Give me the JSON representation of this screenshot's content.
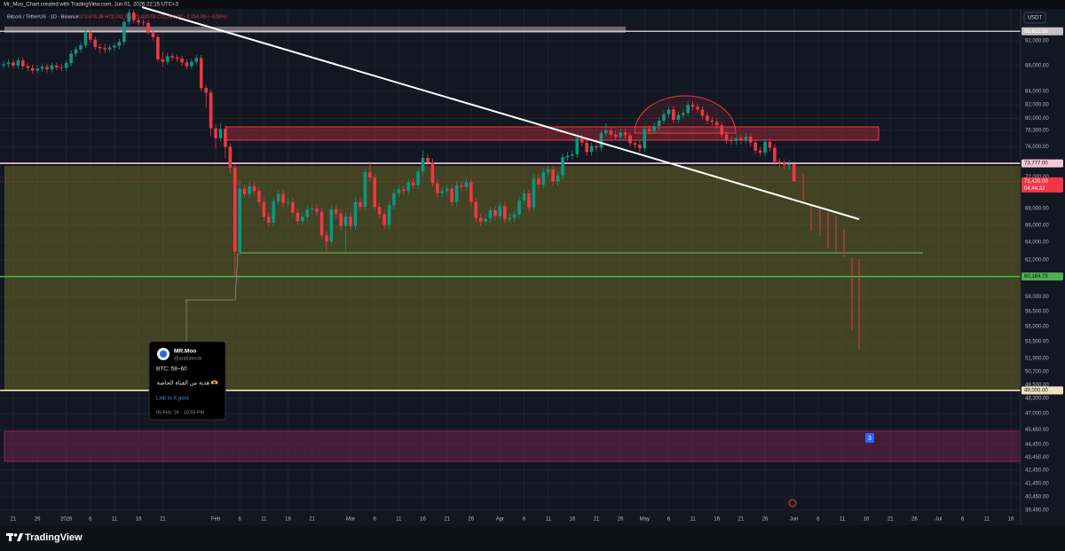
{
  "header": {
    "watermark": "Mr_Moo_Chart created with TradingView.com, Jun 01, 2026 22:15 UTC+3",
    "symbol": "Bitcoin / TetherUS · 1D · Binance",
    "ohlc": "O73,674.39 H73,742.00 L71,420.00 C71,420.00 −2,254.39 (−3.06%)",
    "currency": "USDT"
  },
  "chart_data": {
    "type": "candlestick",
    "log_scale": true,
    "grid": true,
    "up_color": "#089981",
    "down_color": "#f23645",
    "categories": [
      null,
      null,
      "21",
      null,
      null,
      null,
      null,
      "26",
      null,
      null,
      null,
      null,
      null,
      "2026",
      null,
      null,
      null,
      null,
      "6",
      null,
      null,
      null,
      null,
      "11",
      null,
      null,
      null,
      null,
      "16",
      null,
      null,
      null,
      null,
      "21",
      null,
      null,
      null,
      null,
      null,
      null,
      null,
      null,
      null,
      null,
      "Feb",
      null,
      null,
      null,
      null,
      "6",
      null,
      null,
      null,
      null,
      "11",
      null,
      null,
      null,
      null,
      "16",
      null,
      null,
      null,
      null,
      "21",
      null,
      null,
      null,
      null,
      null,
      null,
      null,
      "Mar",
      null,
      null,
      null,
      null,
      "6",
      null,
      null,
      null,
      null,
      "11",
      null,
      null,
      null,
      null,
      "16",
      null,
      null,
      null,
      null,
      "21",
      null,
      null,
      null,
      null,
      "26",
      null,
      null,
      null,
      null,
      null,
      "Apr",
      null,
      null,
      null,
      null,
      "6",
      null,
      null,
      null,
      null,
      "11",
      null,
      null,
      null,
      null,
      "16",
      null,
      null,
      null,
      null,
      "21",
      null,
      null,
      null,
      null,
      "26",
      null,
      null,
      null,
      null,
      "May",
      null,
      null,
      null,
      null,
      "6",
      null,
      null,
      null,
      null,
      "11",
      null,
      null,
      null,
      null,
      "16",
      null,
      null,
      null,
      null,
      "21",
      null,
      null,
      null,
      null,
      "26",
      null,
      null,
      null,
      null,
      null,
      "Jun",
      null,
      null,
      null,
      null,
      "6",
      null,
      null,
      null,
      null,
      "11",
      null,
      null,
      null,
      null,
      "16",
      null,
      null,
      null,
      null,
      "21",
      null,
      null,
      null,
      null,
      "26",
      null,
      null,
      null,
      null,
      "Jul",
      null,
      null,
      null,
      null,
      "6",
      null,
      null,
      null,
      null,
      "11",
      null,
      null,
      null,
      null,
      "16"
    ],
    "open": [
      88000,
      88200,
      88500,
      88000,
      88800,
      87900,
      87600,
      87200,
      87500,
      87800,
      87400,
      88000,
      87700,
      87600,
      88400,
      89900,
      90600,
      91300,
      93400,
      92200,
      91000,
      90800,
      90600,
      90900,
      91200,
      91800,
      95200,
      96800,
      95500,
      95100,
      95000,
      93500,
      92600,
      89000,
      88600,
      89500,
      89300,
      89100,
      88500,
      87900,
      88600,
      89200,
      84500,
      83800,
      78600,
      77200,
      78500,
      76000,
      73200,
      62900,
      70500,
      69800,
      70800,
      70200,
      68800,
      67000,
      66300,
      68900,
      69800,
      68700,
      68800,
      67500,
      66500,
      67000,
      67900,
      68000,
      67600,
      64800,
      64100,
      67900,
      67400,
      65900,
      67000,
      65900,
      68800,
      68200,
      72600,
      71900,
      68200,
      67300,
      66000,
      68400,
      69900,
      70400,
      70200,
      71300,
      70900,
      72700,
      74500,
      73900,
      71200,
      69900,
      70200,
      70500,
      68800,
      70900,
      70700,
      71300,
      68800,
      66900,
      66400,
      66800,
      67800,
      67100,
      68300,
      66700,
      66900,
      67300,
      69000,
      69900,
      68100,
      71800,
      71000,
      72600,
      73000,
      71400,
      72200,
      74600,
      74800,
      75000,
      77200,
      76600,
      75300,
      76100,
      75900,
      77900,
      78300,
      77700,
      77400,
      78000,
      77600,
      76500,
      76300,
      75800,
      78500,
      78200,
      78900,
      79700,
      80600,
      81300,
      79800,
      80500,
      80800,
      82000,
      81700,
      81300,
      80400,
      79700,
      79500,
      79000,
      77700,
      77000,
      76800,
      77200,
      76900,
      77400,
      76600,
      75500,
      75200,
      76700,
      75900,
      74000,
      73800,
      73500,
      73674.39,
      null,
      null,
      null,
      null,
      null,
      null,
      null,
      null,
      null,
      null,
      null,
      null,
      null,
      null,
      null,
      null,
      null,
      null,
      null,
      null,
      null,
      null,
      null,
      null,
      null,
      null,
      null,
      null,
      null,
      null,
      null,
      null,
      null,
      null,
      null,
      null,
      null,
      null,
      null,
      null,
      null,
      null,
      null,
      null,
      null
    ],
    "high": [
      88700,
      89000,
      89000,
      89300,
      89300,
      88400,
      88100,
      88000,
      88300,
      88300,
      88500,
      88500,
      88200,
      88900,
      90400,
      91100,
      91800,
      94000,
      94200,
      92700,
      91500,
      91500,
      91400,
      91700,
      92300,
      95700,
      97400,
      97300,
      96000,
      95600,
      95500,
      94000,
      93100,
      90200,
      90000,
      90000,
      89800,
      89600,
      89000,
      89100,
      89700,
      89700,
      85000,
      84300,
      79200,
      79300,
      79000,
      76500,
      73700,
      71500,
      71000,
      71300,
      71300,
      70700,
      69300,
      67500,
      69400,
      70300,
      70300,
      69300,
      69300,
      68000,
      67500,
      68400,
      68500,
      68500,
      68100,
      65300,
      68400,
      68400,
      67900,
      67500,
      67500,
      69300,
      69300,
      73100,
      74000,
      72400,
      68700,
      67800,
      68900,
      70400,
      70900,
      70900,
      71800,
      71800,
      73200,
      75500,
      75000,
      74400,
      71700,
      70700,
      71000,
      71000,
      71400,
      71400,
      71800,
      71800,
      69300,
      67400,
      67300,
      68300,
      68300,
      68800,
      68800,
      67400,
      67800,
      69500,
      70400,
      70400,
      72300,
      72300,
      73100,
      73500,
      73500,
      72700,
      75100,
      75300,
      75500,
      77700,
      77700,
      77100,
      76600,
      76600,
      78400,
      79300,
      78800,
      78200,
      78500,
      78500,
      78100,
      77000,
      76800,
      79000,
      79000,
      79400,
      80200,
      81100,
      81800,
      81800,
      81000,
      81300,
      82500,
      82500,
      82200,
      81800,
      80900,
      80200,
      80000,
      79500,
      78200,
      77500,
      77700,
      77700,
      77900,
      77900,
      77100,
      76000,
      77200,
      77200,
      76400,
      74500,
      74300,
      74200,
      73742,
      null,
      null,
      null,
      null,
      null,
      null,
      null,
      null,
      null,
      null,
      null,
      null,
      null,
      null,
      null,
      null,
      null,
      null,
      null,
      null,
      null,
      null,
      null,
      null,
      null,
      null,
      null,
      null,
      null,
      null,
      null,
      null,
      null,
      null,
      null,
      null,
      null,
      null,
      null,
      null,
      null,
      null,
      null,
      null,
      null
    ],
    "low": [
      87500,
      87700,
      87500,
      87500,
      87400,
      87100,
      86700,
      86700,
      87000,
      86900,
      86900,
      87200,
      87100,
      87100,
      87900,
      89400,
      90100,
      90800,
      91700,
      90500,
      90000,
      90000,
      90100,
      90400,
      90600,
      91300,
      94700,
      95000,
      94600,
      94500,
      93000,
      92100,
      88500,
      87800,
      88100,
      88800,
      88600,
      88000,
      87400,
      87400,
      88100,
      84000,
      81500,
      77500,
      75800,
      76700,
      74500,
      72500,
      60100,
      62500,
      69300,
      69300,
      69700,
      68300,
      66500,
      65800,
      65800,
      68400,
      68200,
      68200,
      67000,
      66000,
      66000,
      66500,
      67400,
      67100,
      64300,
      62800,
      63600,
      66900,
      65400,
      63000,
      65400,
      65400,
      67700,
      67700,
      71400,
      67700,
      66800,
      65500,
      65500,
      67900,
      69400,
      69700,
      69700,
      70400,
      70400,
      72200,
      73400,
      70700,
      69400,
      69400,
      69700,
      68300,
      68300,
      70200,
      70200,
      68300,
      66400,
      65900,
      65900,
      66300,
      66600,
      66600,
      66200,
      66200,
      66400,
      66800,
      68500,
      67600,
      67600,
      70500,
      70500,
      72100,
      70900,
      70900,
      71700,
      74100,
      74300,
      74500,
      76100,
      74800,
      74800,
      75400,
      75400,
      77400,
      77200,
      76900,
      76900,
      77100,
      76000,
      75800,
      75300,
      75300,
      77700,
      77700,
      78400,
      79200,
      80100,
      79300,
      79300,
      80000,
      80300,
      81200,
      80800,
      79900,
      79200,
      79000,
      78500,
      77200,
      76500,
      76300,
      76300,
      76400,
      76400,
      76100,
      75000,
      74700,
      74700,
      75400,
      73500,
      73300,
      73000,
      73000,
      71420,
      null,
      null,
      null,
      null,
      null,
      null,
      null,
      null,
      null,
      null,
      null,
      null,
      null,
      null,
      null,
      null,
      null,
      null,
      null,
      null,
      null,
      null,
      null,
      null,
      null,
      null,
      null,
      null,
      null,
      null,
      null,
      null,
      null,
      null,
      null,
      null,
      null,
      null,
      null,
      null,
      null,
      null,
      null,
      null,
      null
    ],
    "close": [
      88200,
      88500,
      88000,
      88800,
      87900,
      87600,
      87200,
      87500,
      87800,
      87400,
      88000,
      87700,
      87600,
      88400,
      89900,
      90600,
      91300,
      93400,
      92200,
      91000,
      90800,
      90600,
      90900,
      91200,
      91800,
      95200,
      96800,
      95500,
      95100,
      95000,
      93500,
      92600,
      89000,
      88600,
      89500,
      89300,
      89100,
      88500,
      87900,
      88600,
      89200,
      84500,
      83800,
      78600,
      77200,
      78500,
      76000,
      73200,
      62900,
      70500,
      69800,
      70800,
      70200,
      68800,
      67000,
      66300,
      68900,
      69800,
      68700,
      68800,
      67500,
      66500,
      67000,
      67900,
      68000,
      67600,
      64800,
      64100,
      67900,
      67400,
      65900,
      67000,
      65900,
      68800,
      68200,
      72600,
      71900,
      68200,
      67300,
      66000,
      68400,
      69900,
      70400,
      70200,
      71300,
      70900,
      72700,
      74500,
      73900,
      71200,
      69900,
      70200,
      70500,
      68800,
      70900,
      70700,
      71300,
      68800,
      66900,
      66400,
      66800,
      67800,
      67100,
      68300,
      66700,
      66900,
      67300,
      69000,
      69900,
      68100,
      71800,
      71000,
      72600,
      73000,
      71400,
      72200,
      74600,
      74800,
      75000,
      77200,
      76600,
      75300,
      76100,
      75900,
      77900,
      78300,
      77700,
      77400,
      78000,
      77600,
      76500,
      76300,
      75800,
      78500,
      78200,
      78900,
      79700,
      80600,
      81300,
      79800,
      80500,
      80800,
      82000,
      81700,
      81300,
      80400,
      79700,
      79500,
      79000,
      77700,
      77000,
      76800,
      77200,
      76900,
      77400,
      76600,
      75500,
      75200,
      76700,
      75900,
      74000,
      73800,
      73500,
      73674.39,
      71420,
      null,
      null,
      null,
      null,
      null,
      null,
      null,
      null,
      null,
      null,
      null,
      null,
      null,
      null,
      null,
      null,
      null,
      null,
      null,
      null,
      null,
      null,
      null,
      null,
      null,
      null,
      null,
      null,
      null,
      null,
      null,
      null,
      null,
      null,
      null,
      null,
      null,
      null,
      null,
      null,
      null,
      null,
      null,
      null,
      null
    ],
    "ylim": [
      39300,
      97460
    ],
    "yticks": [
      {
        "value": 92000,
        "label": "92,000.00"
      },
      {
        "value": 88000,
        "label": "88,000.00"
      },
      {
        "value": 84000,
        "label": "84,000.00"
      },
      {
        "value": 82000,
        "label": "82,000.00"
      },
      {
        "value": 80000,
        "label": "80,000.00"
      },
      {
        "value": 78300,
        "label": "78,300.00"
      },
      {
        "value": 76000,
        "label": "76,000.00"
      },
      {
        "value": 72000,
        "label": "72,000.00"
      },
      {
        "value": 68000,
        "label": "68,000.00"
      },
      {
        "value": 66000,
        "label": "66,000.00"
      },
      {
        "value": 64000,
        "label": "64,000.00"
      },
      {
        "value": 62000,
        "label": "62,000.00"
      },
      {
        "value": 58000,
        "label": "58,000.00"
      },
      {
        "value": 56500,
        "label": "56,500.00"
      },
      {
        "value": 55000,
        "label": "55,000.00"
      },
      {
        "value": 53500,
        "label": "53,500.00"
      },
      {
        "value": 51900,
        "label": "51,900.00"
      },
      {
        "value": 50700,
        "label": "50,700.00"
      },
      {
        "value": 49500,
        "label": "49,500.00"
      },
      {
        "value": 48300,
        "label": "48,300.00"
      },
      {
        "value": 47000,
        "label": "47,000.00"
      },
      {
        "value": 45650,
        "label": "45,650.00"
      },
      {
        "value": 44450,
        "label": "44,450.00"
      },
      {
        "value": 43450,
        "label": "43,450.00"
      },
      {
        "value": 42450,
        "label": "42,450.00"
      },
      {
        "value": 41450,
        "label": "41,450.00"
      },
      {
        "value": 40450,
        "label": "40,450.00"
      },
      {
        "value": 39490,
        "label": "39,490.00"
      }
    ],
    "price_lines": [
      {
        "value": 93602.58,
        "label": "93,602.58",
        "color": "#c8c2c6",
        "label_color": "#ffffff"
      },
      {
        "value": 73777,
        "label": "73,777.00",
        "color": "#f8c8d8",
        "label_color": "#131722"
      },
      {
        "value": 60164.79,
        "label": "60,164.79",
        "color": "#4caf50",
        "label_color": "#131722"
      },
      {
        "value": 49000,
        "label": "49,000.00",
        "color": "#f3e2bd",
        "label_color": "#131722"
      }
    ],
    "last_price": {
      "value": 71420,
      "label": "71,420.00",
      "countdown": "04:44:32",
      "color": "#f23645"
    }
  },
  "post_card": {
    "author": "MR.Moo",
    "handle": "@arabsbook",
    "text": "BTC: 58–60",
    "note": "هدية من القناة الخاصة 🫶",
    "link": "Link to X post",
    "time": "05 Feb '26 · 10:55 PM"
  },
  "badge": "3",
  "footer": {
    "brand": "TradingView"
  }
}
